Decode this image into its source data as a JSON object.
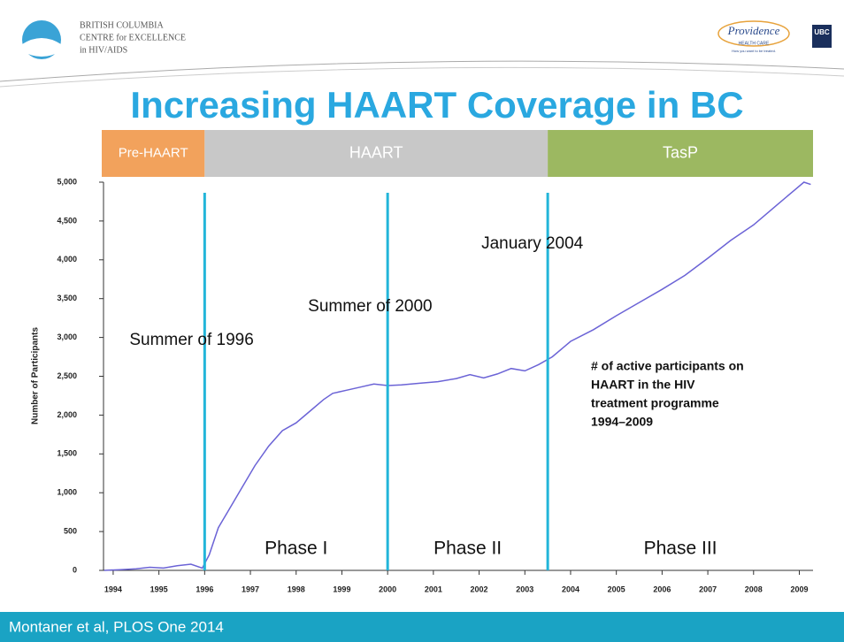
{
  "header": {
    "org_lines": [
      "BRITISH COLUMBIA",
      "CENTRE for EXCELLENCE",
      "in HIV/AIDS"
    ],
    "partner": "Providence",
    "partner_sub": "HEALTH CARE",
    "partner_tag": "How you want to be treated.",
    "university": "UBC"
  },
  "footer": "Montaner et al, PLOS One 2014",
  "chart_data": {
    "type": "line",
    "title": "Increasing HAART Coverage in BC",
    "ylabel": "Number of Participants",
    "color": "#6b63d6",
    "x": [
      1994.3,
      1994.7,
      1995.0,
      1995.3,
      1995.6,
      1995.9,
      1996.2,
      1996.45,
      1996.6,
      1996.8,
      1997.0,
      1997.3,
      1997.6,
      1997.9,
      1998.2,
      1998.5,
      1998.8,
      1999.1,
      1999.3,
      1999.6,
      1999.9,
      2000.2,
      2000.5,
      2000.8,
      2001.2,
      2001.6,
      2002.0,
      2002.3,
      2002.6,
      2002.9,
      2003.2,
      2003.5,
      2003.8,
      2004.1,
      2004.5,
      2005.0,
      2005.5,
      2006.0,
      2006.5,
      2007.0,
      2007.5,
      2008.0,
      2008.5,
      2009.0,
      2009.4,
      2009.6,
      2009.75
    ],
    "values": [
      0,
      10,
      20,
      40,
      30,
      60,
      80,
      30,
      200,
      550,
      750,
      1050,
      1350,
      1600,
      1800,
      1900,
      2050,
      2200,
      2280,
      2320,
      2360,
      2400,
      2380,
      2390,
      2410,
      2430,
      2470,
      2520,
      2480,
      2530,
      2600,
      2570,
      2650,
      2750,
      2950,
      3100,
      3280,
      3450,
      3620,
      3800,
      4020,
      4250,
      4450,
      4700,
      4900,
      5000,
      4970
    ],
    "xlim": [
      1994.25,
      2009.8
    ],
    "ylim": [
      0,
      5000
    ],
    "xticks": [
      {
        "value": 1994.5,
        "label": "1994"
      },
      {
        "value": 1995.5,
        "label": "1995"
      },
      {
        "value": 1996.5,
        "label": "1996"
      },
      {
        "value": 1997.5,
        "label": "1997"
      },
      {
        "value": 1998.5,
        "label": "1998"
      },
      {
        "value": 1999.5,
        "label": "1999"
      },
      {
        "value": 2000.5,
        "label": "2000"
      },
      {
        "value": 2001.5,
        "label": "2001"
      },
      {
        "value": 2002.5,
        "label": "2002"
      },
      {
        "value": 2003.5,
        "label": "2003"
      },
      {
        "value": 2004.5,
        "label": "2004"
      },
      {
        "value": 2005.5,
        "label": "2005"
      },
      {
        "value": 2006.5,
        "label": "2006"
      },
      {
        "value": 2007.5,
        "label": "2007"
      },
      {
        "value": 2008.5,
        "label": "2008"
      },
      {
        "value": 2009.5,
        "label": "2009"
      }
    ],
    "yticks": [
      0,
      500,
      {
        "value": 1000,
        "label": "1,000"
      },
      {
        "value": 1500,
        "label": "1,500"
      },
      {
        "value": 2000,
        "label": "2,000"
      },
      {
        "value": 2500,
        "label": "2,500"
      },
      {
        "value": 3000,
        "label": "3,000"
      },
      {
        "value": 3500,
        "label": "3,500"
      },
      {
        "value": 4000,
        "label": "4,000"
      },
      {
        "value": 4500,
        "label": "4,500"
      },
      {
        "value": 5000,
        "label": "5,000"
      }
    ],
    "eras": [
      {
        "label": "Pre-HAART",
        "start": 1994.25,
        "end": 1996.5,
        "color": "#f2a25c"
      },
      {
        "label": "HAART",
        "start": 1996.5,
        "end": 2004.0,
        "color": "#c8c8c8"
      },
      {
        "label": "TasP",
        "start": 2004.0,
        "end": 2009.8,
        "color": "#9cb861"
      }
    ],
    "markers": [
      {
        "x": 1996.5,
        "label": "Summer of 1996"
      },
      {
        "x": 2000.5,
        "label": "Summer of 2000"
      },
      {
        "x": 2004.0,
        "label": "January 2004"
      }
    ],
    "phases": [
      "Phase I",
      "Phase II",
      "Phase III"
    ],
    "note": [
      "# of active participants on",
      "HAART in the HIV",
      "treatment programme",
      "1994–2009"
    ]
  }
}
